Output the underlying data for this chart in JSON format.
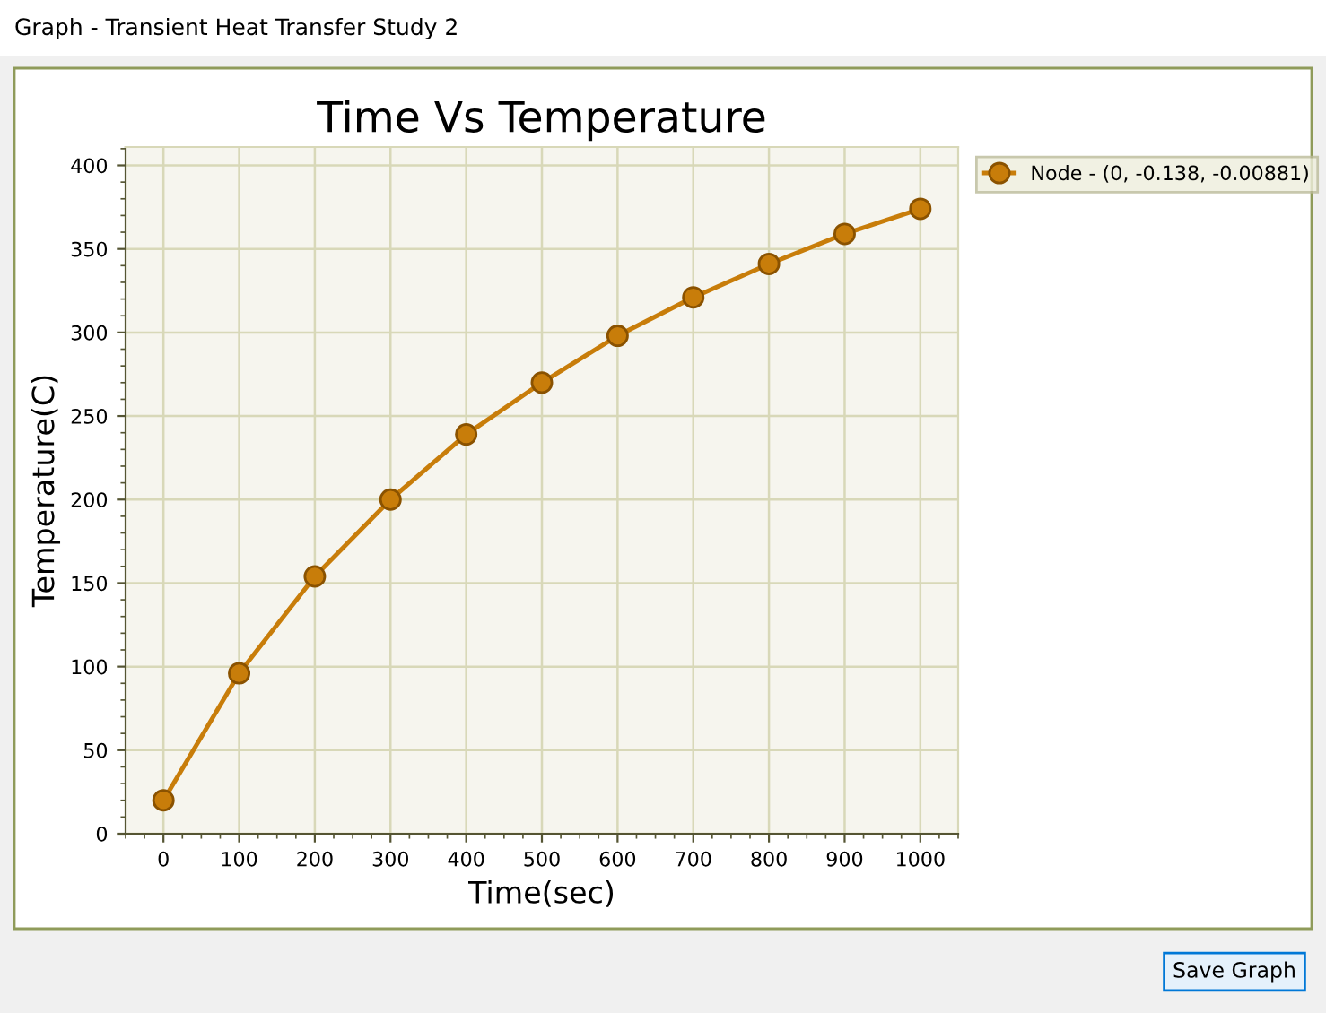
{
  "chart_data": {
    "type": "line",
    "title": "Time Vs Temperature",
    "xlabel": "Time(sec)",
    "ylabel": "Temperature(C)",
    "annotations": [
      "Graph - Transient Heat Transfer Study 2",
      "Save Graph"
    ],
    "x": [
      0,
      100,
      200,
      300,
      400,
      500,
      600,
      700,
      800,
      900,
      1000
    ],
    "series": [
      {
        "name": "Node - (0, -0.138, -0.00881)",
        "color": "#c87d0a",
        "values": [
          20,
          96,
          154,
          200,
          239,
          270,
          298,
          321,
          341,
          359,
          374
        ]
      }
    ],
    "xlim": [
      -50,
      1050
    ],
    "ylim": [
      0,
      411
    ],
    "xticks": [
      0,
      100,
      200,
      300,
      400,
      500,
      600,
      700,
      800,
      900,
      1000
    ],
    "yticks": [
      0,
      50,
      100,
      150,
      200,
      250,
      300,
      350,
      400
    ],
    "grid": true,
    "legend": "top right",
    "marker": "circle",
    "line_style": "solid"
  }
}
